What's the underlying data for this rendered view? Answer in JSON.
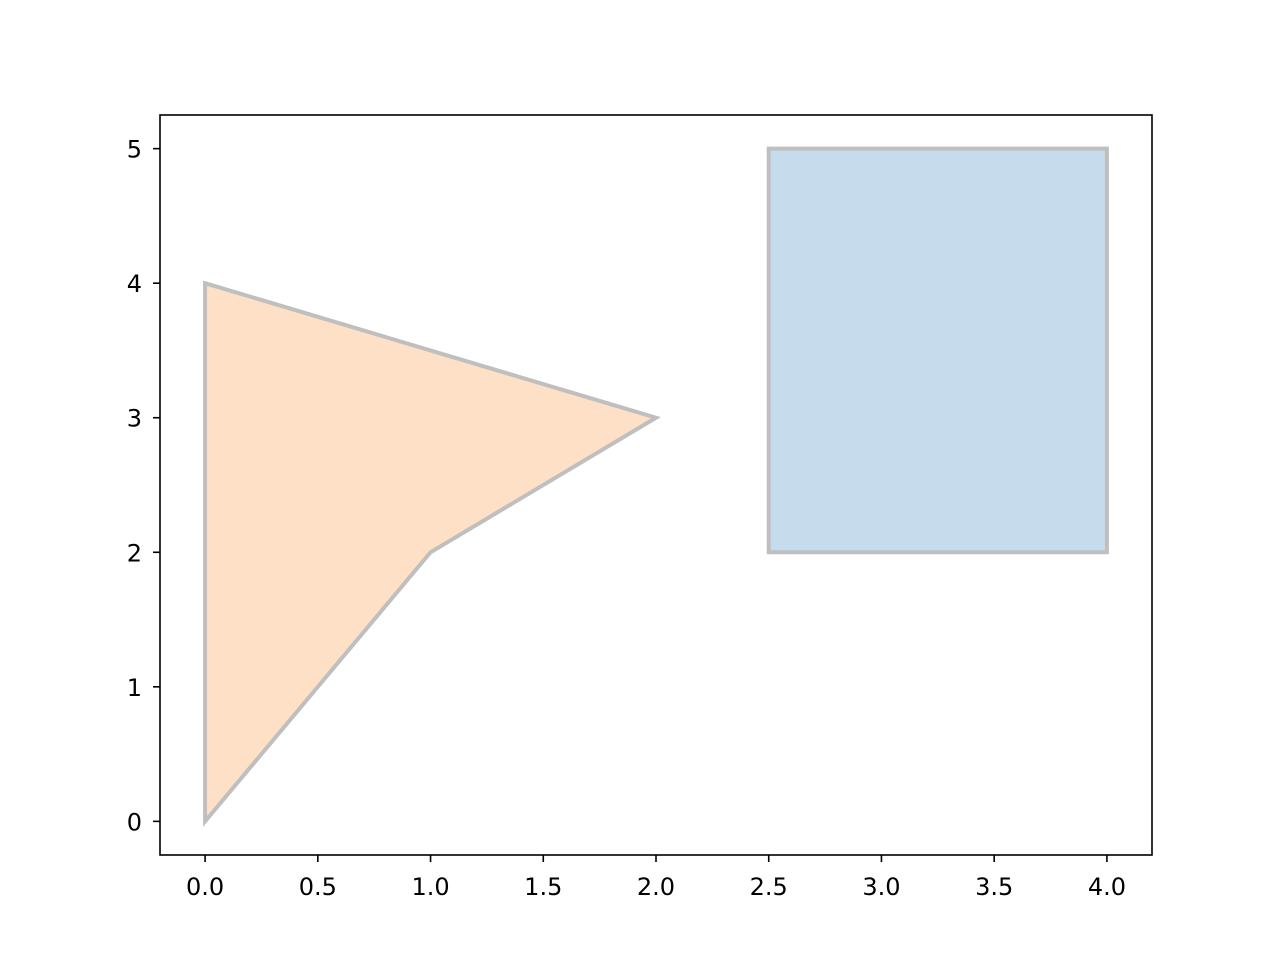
{
  "chart_data": {
    "type": "area",
    "title": "",
    "xlabel": "",
    "ylabel": "",
    "xlim": [
      -0.2,
      4.2
    ],
    "ylim": [
      -0.25,
      5.25
    ],
    "xticks": [
      0.0,
      0.5,
      1.0,
      1.5,
      2.0,
      2.5,
      3.0,
      3.5,
      4.0
    ],
    "yticks": [
      0,
      1,
      2,
      3,
      4,
      5
    ],
    "xtick_labels": [
      "0.0",
      "0.5",
      "1.0",
      "1.5",
      "2.0",
      "2.5",
      "3.0",
      "3.5",
      "4.0"
    ],
    "ytick_labels": [
      "0",
      "1",
      "2",
      "3",
      "4",
      "5"
    ],
    "grid": false,
    "legend": "none",
    "shapes": [
      {
        "kind": "polygon",
        "points": [
          [
            0,
            0
          ],
          [
            1,
            2
          ],
          [
            2,
            3
          ],
          [
            0,
            4
          ]
        ],
        "fill": "#fde0c5",
        "stroke": "#bfbfbf"
      },
      {
        "kind": "rectangle",
        "points": [
          [
            2.5,
            2
          ],
          [
            4,
            2
          ],
          [
            4,
            5
          ],
          [
            2.5,
            5
          ]
        ],
        "fill": "#c6dcec",
        "stroke": "#bfbfbf"
      }
    ]
  }
}
